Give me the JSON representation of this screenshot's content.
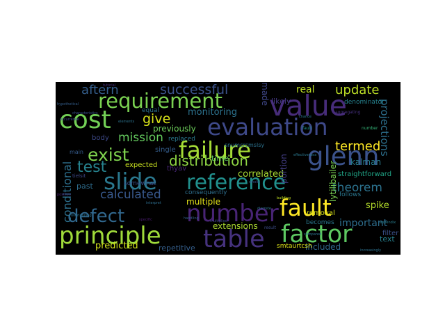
{
  "words": [
    {
      "text": "requirement",
      "color": "#7ad151"
    },
    {
      "text": "value",
      "color": "#472c7a"
    },
    {
      "text": "cost",
      "color": "#73d056"
    },
    {
      "text": "evaluation",
      "color": "#3e4989"
    },
    {
      "text": "failure",
      "color": "#a5db36"
    },
    {
      "text": "glenn",
      "color": "#3b528b"
    },
    {
      "text": "slide",
      "color": "#2a788e"
    },
    {
      "text": "reference",
      "color": "#21908d"
    },
    {
      "text": "fault",
      "color": "#fde725"
    },
    {
      "text": "defect",
      "color": "#31688e"
    },
    {
      "text": "number",
      "color": "#482475"
    },
    {
      "text": "principle",
      "color": "#9fda3a"
    },
    {
      "text": "table",
      "color": "#46327e"
    },
    {
      "text": "factor",
      "color": "#5ec962"
    },
    {
      "text": "distribution",
      "color": "#8fd744"
    },
    {
      "text": "exist",
      "color": "#7fd34e"
    },
    {
      "text": "test",
      "color": "#26828e"
    },
    {
      "text": "successful",
      "color": "#3b528b"
    },
    {
      "text": "aftern",
      "color": "#355f8d"
    },
    {
      "text": "update",
      "color": "#bddf26"
    },
    {
      "text": "give",
      "color": "#d8e219"
    },
    {
      "text": "mission",
      "color": "#65cb5e"
    },
    {
      "text": "termed",
      "color": "#fde725"
    },
    {
      "text": "calculated",
      "color": "#38588c"
    },
    {
      "text": "theorem",
      "color": "#2c728e"
    },
    {
      "text": "conditional",
      "color": "#2d708e"
    },
    {
      "text": "projections",
      "color": "#2d708e"
    },
    {
      "text": "monitoring",
      "color": "#2c728e"
    },
    {
      "text": "real",
      "color": "#bddf26"
    },
    {
      "text": "made",
      "color": "#3f4788"
    },
    {
      "text": "previously",
      "color": "#6ccd5a"
    },
    {
      "text": "correlated",
      "color": "#a8db34"
    },
    {
      "text": "spike",
      "color": "#b5de2b"
    },
    {
      "text": "multiple",
      "color": "#e5e419"
    },
    {
      "text": "extensions",
      "color": "#addc30"
    },
    {
      "text": "important",
      "color": "#2e6e8e"
    },
    {
      "text": "predicted",
      "color": "#d2e21b"
    },
    {
      "text": "repetitive",
      "color": "#355f8d"
    },
    {
      "text": "included",
      "color": "#31688e"
    },
    {
      "text": "lytilibailer",
      "color": "#7ad151"
    },
    {
      "text": "expected",
      "color": "#c8e020"
    },
    {
      "text": "past",
      "color": "#2e6d8e"
    },
    {
      "text": "kalman",
      "color": "#287c8e"
    },
    {
      "text": "time",
      "color": "#5cc863"
    },
    {
      "text": "portion",
      "color": "#433e85"
    },
    {
      "text": "single",
      "color": "#355e8d"
    },
    {
      "text": "consequently",
      "color": "#2e6f8e"
    },
    {
      "text": "replaced",
      "color": "#2a788e"
    },
    {
      "text": "likely",
      "color": "#443983"
    },
    {
      "text": "equal",
      "color": "#2d718e"
    },
    {
      "text": "body",
      "color": "#3e4a89"
    },
    {
      "text": "straightforward",
      "color": "#20a486"
    },
    {
      "text": "follows",
      "color": "#2a768e"
    },
    {
      "text": "becomes",
      "color": "#2a788e"
    },
    {
      "text": "removal",
      "color": "#d8e219"
    },
    {
      "text": "somewhat",
      "color": "#3b528b"
    },
    {
      "text": "thyav",
      "color": "#482677"
    },
    {
      "text": "smtaurtcsh",
      "color": "#dde318"
    },
    {
      "text": "denominator",
      "color": "#26828e"
    },
    {
      "text": "filter",
      "color": "#3b528b"
    },
    {
      "text": "snumcrcmslsy",
      "color": "#2c728e"
    },
    {
      "text": "main",
      "color": "#365c8d"
    },
    {
      "text": "tielsit",
      "color": "#3e4989"
    },
    {
      "text": "result",
      "color": "#3d4e8a"
    },
    {
      "text": "text",
      "color": "#27808e"
    },
    {
      "text": "characteristics",
      "color": "#3b528b"
    },
    {
      "text": "hypothetical",
      "color": "#355f8d"
    },
    {
      "text": "aggregating",
      "color": "#46307e"
    },
    {
      "text": "tutorial",
      "color": "#472d7b"
    },
    {
      "text": "overlapping",
      "color": "#2d708e"
    },
    {
      "text": "building",
      "color": "#c2df23"
    },
    {
      "text": "position",
      "color": "#481f71"
    },
    {
      "text": "compared",
      "color": "#2c728e"
    },
    {
      "text": "handling",
      "color": "#355e8d"
    },
    {
      "text": "appendix",
      "color": "#287d8e"
    },
    {
      "text": "increasingly",
      "color": "#2d718e"
    },
    {
      "text": "occurrence",
      "color": "#3e4989"
    },
    {
      "text": "fault",
      "color": "#21918c"
    },
    {
      "text": "chance",
      "color": "#2a788e"
    },
    {
      "text": "specific",
      "color": "#481b6d"
    },
    {
      "text": "discrete",
      "color": "#2c728e"
    },
    {
      "text": "whole",
      "color": "#3b528b"
    },
    {
      "text": "effectiveness",
      "color": "#2a788e"
    },
    {
      "text": "multiplied",
      "color": "#404688"
    },
    {
      "text": "number",
      "color": "#35b779"
    },
    {
      "text": "interpret",
      "color": "#2e6e8e"
    },
    {
      "text": "elements",
      "color": "#2c728e"
    }
  ]
}
